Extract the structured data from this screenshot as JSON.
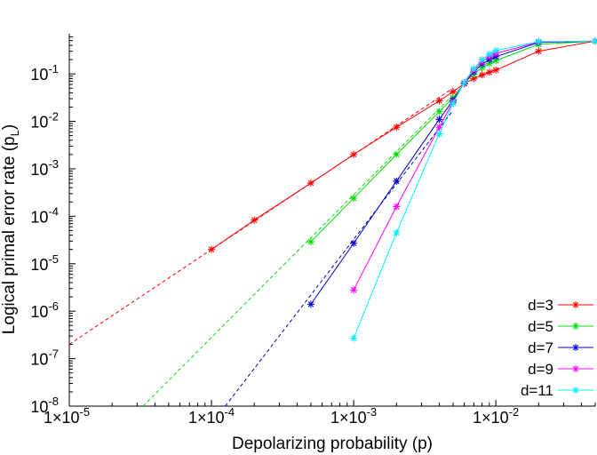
{
  "chart_data": {
    "type": "line",
    "xlabel": "Depolarizing probability (p)",
    "ylabel_main": "Logical primal error rate (p",
    "ylabel_sub": "L",
    "ylabel_close": ")",
    "x_scale": "log",
    "y_scale": "log",
    "xlim": [
      1e-05,
      0.05
    ],
    "ylim": [
      1e-08,
      0.7
    ],
    "grid": false,
    "legend_position": "bottom-right",
    "x_ticks": [
      {
        "value": 1e-05,
        "mant": "1×10",
        "exp": "-5"
      },
      {
        "value": 0.0001,
        "mant": "1×10",
        "exp": "-4"
      },
      {
        "value": 0.001,
        "mant": "1×10",
        "exp": "-3"
      },
      {
        "value": 0.01,
        "mant": "1×10",
        "exp": "-2"
      }
    ],
    "y_ticks": [
      {
        "value": 1e-08,
        "mant": "10",
        "exp": "-8"
      },
      {
        "value": 1e-07,
        "mant": "10",
        "exp": "-7"
      },
      {
        "value": 1e-06,
        "mant": "10",
        "exp": "-6"
      },
      {
        "value": 1e-05,
        "mant": "10",
        "exp": "-5"
      },
      {
        "value": 0.0001,
        "mant": "10",
        "exp": "-4"
      },
      {
        "value": 0.001,
        "mant": "10",
        "exp": "-3"
      },
      {
        "value": 0.01,
        "mant": "10",
        "exp": "-2"
      },
      {
        "value": 0.1,
        "mant": "10",
        "exp": "-1"
      }
    ],
    "series": [
      {
        "name": "d=3",
        "color": "#ff0000",
        "x": [
          0.0001,
          0.0002,
          0.0005,
          0.001,
          0.002,
          0.004,
          0.005,
          0.006,
          0.007,
          0.008,
          0.009,
          0.01,
          0.02,
          0.05
        ],
        "y": [
          2e-05,
          8.3e-05,
          0.0005,
          0.002,
          0.0075,
          0.027,
          0.042,
          0.062,
          0.08,
          0.095,
          0.108,
          0.12,
          0.3,
          0.49
        ],
        "fit": {
          "x": [
            1e-05,
            0.005
          ],
          "y": [
            2e-07,
            0.05
          ]
        }
      },
      {
        "name": "d=5",
        "color": "#00dd00",
        "x": [
          0.0005,
          0.001,
          0.002,
          0.004,
          0.005,
          0.006,
          0.007,
          0.008,
          0.009,
          0.01,
          0.02,
          0.05
        ],
        "y": [
          2.9e-05,
          0.00024,
          0.002,
          0.016,
          0.031,
          0.064,
          0.1,
          0.135,
          0.165,
          0.19,
          0.42,
          0.49
        ],
        "fit": {
          "x": [
            3.3e-05,
            0.005
          ],
          "y": [
            1e-08,
            0.036
          ]
        }
      },
      {
        "name": "d=7",
        "color": "#0000cc",
        "x": [
          0.0005,
          0.001,
          0.002,
          0.004,
          0.005,
          0.006,
          0.007,
          0.008,
          0.009,
          0.01,
          0.02,
          0.05
        ],
        "y": [
          1.4e-06,
          2.7e-05,
          0.00055,
          0.011,
          0.028,
          0.064,
          0.11,
          0.16,
          0.2,
          0.23,
          0.46,
          0.49
        ],
        "fit": {
          "x": [
            0.000125,
            0.005
          ],
          "y": [
            1e-08,
            0.017
          ]
        }
      },
      {
        "name": "d=9",
        "color": "#ff00ff",
        "x": [
          0.001,
          0.002,
          0.004,
          0.005,
          0.006,
          0.007,
          0.008,
          0.009,
          0.01,
          0.02,
          0.05
        ],
        "y": [
          2.8e-06,
          0.00016,
          0.0075,
          0.026,
          0.065,
          0.12,
          0.18,
          0.23,
          0.27,
          0.47,
          0.49
        ],
        "fit": null
      },
      {
        "name": "d=11",
        "color": "#00eeff",
        "x": [
          0.001,
          0.002,
          0.004,
          0.005,
          0.006,
          0.007,
          0.008,
          0.009,
          0.01,
          0.02,
          0.05
        ],
        "y": [
          2.7e-07,
          4.5e-05,
          0.0055,
          0.024,
          0.066,
          0.13,
          0.2,
          0.26,
          0.31,
          0.48,
          0.49
        ],
        "fit": null
      }
    ]
  }
}
